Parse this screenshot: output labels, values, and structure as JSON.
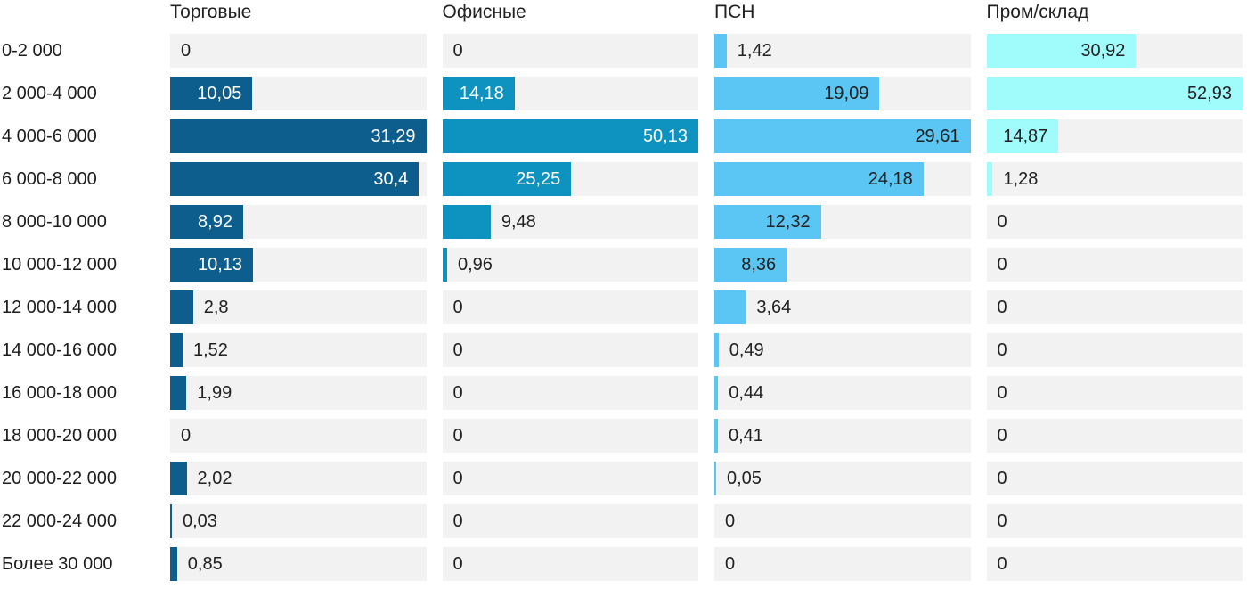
{
  "chart_data": {
    "type": "bar",
    "orientation": "horizontal",
    "value_scaling": "each series scaled to its own max = full track width",
    "decimal_separator": ",",
    "grid": false,
    "legend_position": "column-headers-top",
    "track_color": "#f2f2f2",
    "text_color": "#212121",
    "categories": [
      "0-2 000",
      "2 000-4 000",
      "4 000-6 000",
      "6 000-8 000",
      "8 000-10 000",
      "10 000-12 000",
      "12 000-14 000",
      "14 000-16 000",
      "16 000-18 000",
      "18 000-20 000",
      "20 000-22 000",
      "22 000-24 000",
      "Более 30 000"
    ],
    "series": [
      {
        "name": "Торговые",
        "color": "#0d5e8c",
        "label_color_inside": "#ffffff",
        "values": [
          0,
          10.05,
          31.29,
          30.4,
          8.92,
          10.13,
          2.8,
          1.52,
          1.99,
          0,
          2.02,
          0.03,
          0.85
        ],
        "display": [
          "0",
          "10,05",
          "31,29",
          "30,4",
          "8,92",
          "10,13",
          "2,8",
          "1,52",
          "1,99",
          "0",
          "2,02",
          "0,03",
          "0,85"
        ]
      },
      {
        "name": "Офисные",
        "color": "#0e92bf",
        "label_color_inside": "#ffffff",
        "values": [
          0,
          14.18,
          50.13,
          25.25,
          9.48,
          0.96,
          0,
          0,
          0,
          0,
          0,
          0,
          0
        ],
        "display": [
          "0",
          "14,18",
          "50,13",
          "25,25",
          "9,48",
          "0,96",
          "0",
          "0",
          "0",
          "0",
          "0",
          "0",
          "0"
        ]
      },
      {
        "name": "ПСН",
        "color": "#5bc6f3",
        "label_color_inside": "#212121",
        "values": [
          1.42,
          19.09,
          29.61,
          24.18,
          12.32,
          8.36,
          3.64,
          0.49,
          0.44,
          0.41,
          0.05,
          0,
          0
        ],
        "display": [
          "1,42",
          "19,09",
          "29,61",
          "24,18",
          "12,32",
          "8,36",
          "3,64",
          "0,49",
          "0,44",
          "0,41",
          "0,05",
          "0",
          "0"
        ]
      },
      {
        "name": "Пром/склад",
        "color": "#a0fbfb",
        "label_color_inside": "#212121",
        "values": [
          30.92,
          52.93,
          14.87,
          1.28,
          0,
          0,
          0,
          0,
          0,
          0,
          0,
          0,
          0
        ],
        "display": [
          "30,92",
          "52,93",
          "14,87",
          "1,28",
          "0",
          "0",
          "0",
          "0",
          "0",
          "0",
          "0",
          "0",
          "0"
        ]
      }
    ]
  }
}
